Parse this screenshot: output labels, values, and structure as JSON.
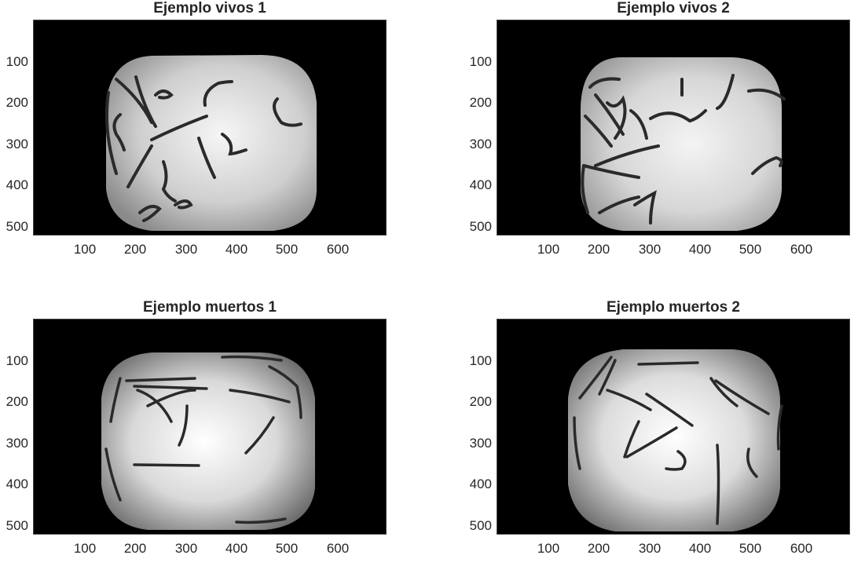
{
  "figure": {
    "panels": [
      {
        "id": "vivos-1",
        "title": "Ejemplo vivos 1",
        "content_description": "top-down grayscale microscope image of live nematodes in a rounded well",
        "x_ticks": [
          "100",
          "200",
          "300",
          "400",
          "500",
          "600"
        ],
        "y_ticks": [
          "100",
          "200",
          "300",
          "400",
          "500"
        ]
      },
      {
        "id": "vivos-2",
        "title": "Ejemplo vivos 2",
        "content_description": "top-down grayscale microscope image of live nematodes in a rounded well",
        "x_ticks": [
          "100",
          "200",
          "300",
          "400",
          "500",
          "600"
        ],
        "y_ticks": [
          "100",
          "200",
          "300",
          "400",
          "500"
        ]
      },
      {
        "id": "muertos-1",
        "title": "Ejemplo muertos 1",
        "content_description": "top-down grayscale microscope image of dead, straight nematodes in a rounded well",
        "x_ticks": [
          "100",
          "200",
          "300",
          "400",
          "500",
          "600"
        ],
        "y_ticks": [
          "100",
          "200",
          "300",
          "400",
          "500"
        ]
      },
      {
        "id": "muertos-2",
        "title": "Ejemplo muertos 2",
        "content_description": "top-down grayscale microscope image of dead, straight nematodes in a rounded well",
        "x_ticks": [
          "100",
          "200",
          "300",
          "400",
          "500",
          "600"
        ],
        "y_ticks": [
          "100",
          "200",
          "300",
          "400",
          "500"
        ]
      }
    ],
    "colors": {
      "background": "#ffffff",
      "image_outside": "#000000",
      "well_center": "#f4f4f4",
      "well_edge": "#8a8a8a",
      "worm": "#2a2a2a",
      "text": "#262626"
    }
  }
}
